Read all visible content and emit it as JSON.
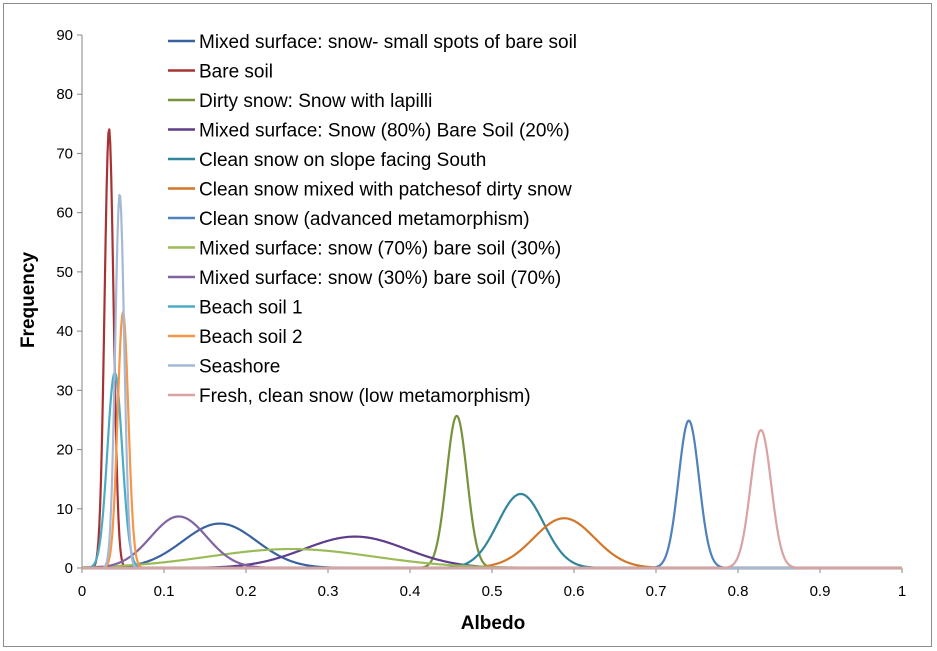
{
  "chart_data": {
    "type": "line",
    "title": "",
    "xlabel": "Albedo",
    "ylabel": "Frequency",
    "xlim": [
      0,
      1
    ],
    "ylim": [
      0,
      90
    ],
    "xticks": [
      0,
      0.1,
      0.2,
      0.3,
      0.4,
      0.5,
      0.6,
      0.7,
      0.8,
      0.9,
      1
    ],
    "xtick_labels": [
      "0",
      "0.1",
      "0.2",
      "0.3",
      "0.4",
      "0.5",
      "0.6",
      "0.7",
      "0.8",
      "0.9",
      "1"
    ],
    "yticks": [
      0,
      10,
      20,
      30,
      40,
      50,
      60,
      70,
      80,
      90
    ],
    "ytick_labels": [
      "0",
      "10",
      "20",
      "30",
      "40",
      "50",
      "60",
      "70",
      "80",
      "90"
    ],
    "grid": false,
    "legend_position": "top-center",
    "series": [
      {
        "name": "Mixed surface: snow- small spots of bare soil",
        "color": "#3a61a0",
        "peak_x": 0.168,
        "peak_y": 7.5,
        "spread": 0.045
      },
      {
        "name": "Bare soil",
        "color": "#a83232",
        "peak_x": 0.033,
        "peak_y": 74.2,
        "spread": 0.0055
      },
      {
        "name": "Dirty snow: Snow with lapilli",
        "color": "#76933c",
        "peak_x": 0.457,
        "peak_y": 25.7,
        "spread": 0.0125
      },
      {
        "name": "Mixed surface: Snow (80%) Bare Soil (20%)",
        "color": "#5f3d8c",
        "peak_x": 0.333,
        "peak_y": 5.3,
        "spread": 0.062
      },
      {
        "name": "Clean snow on slope facing South",
        "color": "#31859c",
        "peak_x": 0.535,
        "peak_y": 12.5,
        "spread": 0.028
      },
      {
        "name": "Clean snow mixed with patchesof dirty snow",
        "color": "#d2772a",
        "peak_x": 0.588,
        "peak_y": 8.4,
        "spread": 0.037
      },
      {
        "name": "Clean snow (advanced metamorphism)",
        "color": "#4f81bd",
        "peak_x": 0.74,
        "peak_y": 24.9,
        "spread": 0.0125
      },
      {
        "name": "Mixed surface: snow (70%) bare soil (30%)",
        "color": "#9bbb59",
        "peak_x": 0.255,
        "peak_y": 3.2,
        "spread": 0.1
      },
      {
        "name": "Mixed surface: snow (30%) bare soil (70%)",
        "color": "#8064a2",
        "peak_x": 0.118,
        "peak_y": 8.7,
        "spread": 0.034
      },
      {
        "name": "Beach soil 1",
        "color": "#4bacc6",
        "peak_x": 0.04,
        "peak_y": 33.0,
        "spread": 0.009
      },
      {
        "name": "Beach soil 2",
        "color": "#f79646",
        "peak_x": 0.05,
        "peak_y": 43.2,
        "spread": 0.0065
      },
      {
        "name": "Seashore",
        "color": "#a5b9d7",
        "peak_x": 0.046,
        "peak_y": 63.2,
        "spread": 0.0055
      },
      {
        "name": "Fresh, clean snow (low metamorphism)",
        "color": "#d9a3a3",
        "peak_x": 0.828,
        "peak_y": 23.3,
        "spread": 0.0125
      }
    ]
  }
}
